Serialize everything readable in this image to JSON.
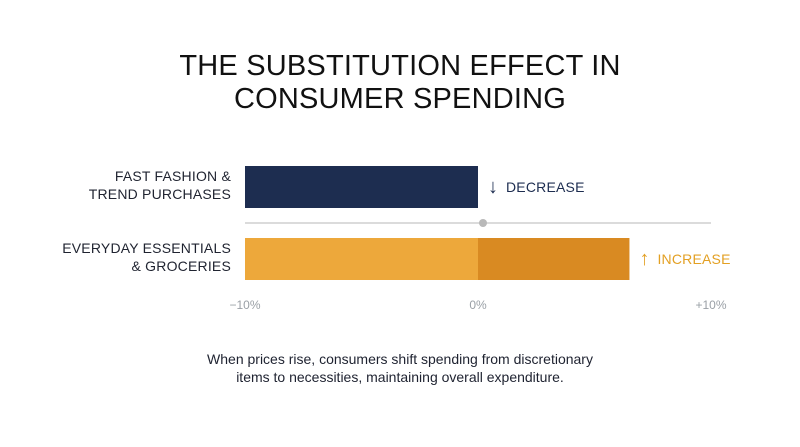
{
  "chart_data": {
    "type": "bar",
    "orientation": "horizontal",
    "title": "THE SUBSTITUTION EFFECT IN\nCONSUMER SPENDING",
    "categories": [
      {
        "lines": [
          "FAST FASHION &",
          "TREND PURCHASES"
        ]
      },
      {
        "lines": [
          "EVERYDAY ESSENTIALS",
          "& GROCERIES"
        ]
      }
    ],
    "values": [
      -10,
      6.5
    ],
    "xlim": [
      -10,
      10
    ],
    "x_ticks": [
      -10,
      0,
      10
    ],
    "tick_labels": [
      "−10%",
      "0%",
      "+10%"
    ],
    "annotations": [
      {
        "arrow": "↓",
        "text": "DECREASE",
        "color": "#1d2d50"
      },
      {
        "arrow": "↑",
        "text": "INCREASE",
        "color": "#e3a023"
      }
    ],
    "colors": {
      "negative_bar": "#1d2d50",
      "positive_bar_left": "#eda83b",
      "positive_bar_right": "#d98a22",
      "axis_line": "#cfcfcf",
      "zero_marker": "#b9b9b9"
    },
    "grid": false,
    "legend": "none"
  },
  "caption": "When prices rise, consumers shift spending from discretionary\nitems to necessities, maintaining overall expenditure."
}
